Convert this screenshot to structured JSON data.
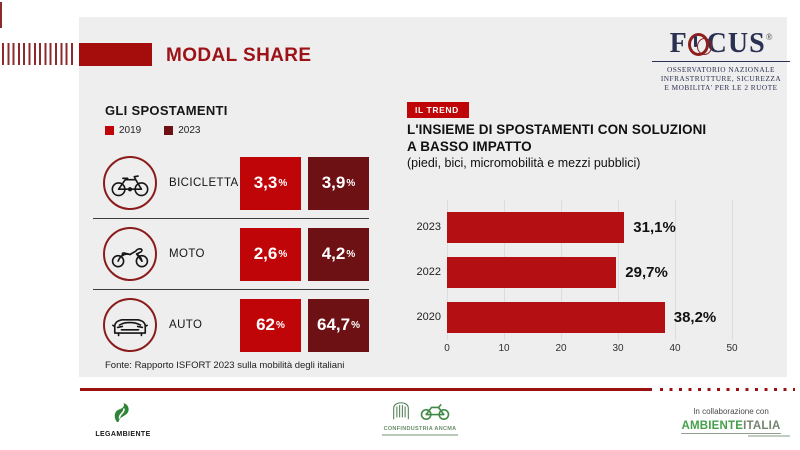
{
  "header": {
    "title": "MODAL SHARE",
    "logo": {
      "word_part1": "F",
      "word_part2": "CUS",
      "registered": "®",
      "caption_line1": "OSSERVATORIO NAZIONALE",
      "caption_line2": "INFRASTRUTTURE, SICUREZZA",
      "caption_line3": "E MOBILITA' PER LE 2 RUOTE"
    }
  },
  "modal_share": {
    "heading": "GLI SPOSTAMENTI",
    "legend": [
      {
        "label": "2019",
        "color": "#c00508"
      },
      {
        "label": "2023",
        "color": "#6e1114"
      }
    ],
    "percent_symbol": "%",
    "rows": [
      {
        "label": "BICICLETTA",
        "icon": "bicycle-icon",
        "v2019": "3,3",
        "v2023": "3,9"
      },
      {
        "label": "MOTO",
        "icon": "motorcycle-icon",
        "v2019": "2,6",
        "v2023": "4,2"
      },
      {
        "label": "AUTO",
        "icon": "car-icon",
        "v2019": "62",
        "v2023": "64,7"
      }
    ],
    "source": "Fonte: Rapporto ISFORT 2023 sulla mobilità degli italiani"
  },
  "trend": {
    "badge": "IL TREND",
    "title_line1": "L'INSIEME DI SPOSTAMENTI CON SOLUZIONI",
    "title_line2": "A BASSO IMPATTO",
    "subtitle": "(piedi, bici, micromobilità e mezzi pubblici)"
  },
  "chart_data": {
    "type": "bar",
    "orientation": "horizontal",
    "title": "L'INSIEME DI SPOSTAMENTI CON SOLUZIONI A BASSO IMPATTO",
    "categories": [
      "2023",
      "2022",
      "2020"
    ],
    "values": [
      31.1,
      29.7,
      38.2
    ],
    "value_labels": [
      "31,1%",
      "29,7%",
      "38,2%"
    ],
    "x_ticks": [
      0,
      10,
      20,
      30,
      40,
      50
    ],
    "xlim": [
      0,
      50
    ],
    "grid": true,
    "legend_position": "none",
    "bar_color": "#b40f12"
  },
  "footer": {
    "legambiente_label": "LEGAMBIENTE",
    "confindustria_label": "CONFINDUSTRIA ANCMA",
    "collab_text": "In collaborazione con",
    "ambiente_part1": "AMBIENTE",
    "ambiente_part2": "ITALIA"
  },
  "colors": {
    "title_red": "#9c1216",
    "header_rect_red": "#a50d0d",
    "red_2019": "#c00508",
    "maroon_2023": "#6e1114",
    "badge_red": "#c00508",
    "bar_red": "#b40f12",
    "footer_line_red": "#9b1111",
    "logo_navy": "#2b3152",
    "logo_ring_red": "#8e1f1f",
    "card_gray": "#efeeee",
    "green": "#3f8a44"
  }
}
